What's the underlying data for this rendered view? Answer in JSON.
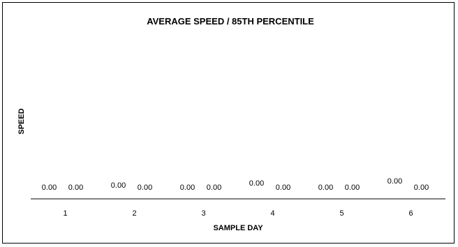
{
  "chart_data": {
    "type": "bar",
    "title": "AVERAGE SPEED / 85TH PERCENTILE",
    "xlabel": "SAMPLE DAY",
    "ylabel": "SPEED",
    "categories": [
      "1",
      "2",
      "3",
      "4",
      "5",
      "6"
    ],
    "series": [
      {
        "values": [
          0.0,
          0.0,
          0.0,
          0.0,
          0.0,
          0.0
        ]
      },
      {
        "values": [
          0.0,
          0.0,
          0.0,
          0.0,
          0.0,
          0.0
        ]
      }
    ],
    "data_labels": [
      [
        "0.00",
        "0.00"
      ],
      [
        "0.00",
        "0.00"
      ],
      [
        "0.00",
        "0.00"
      ],
      [
        "0.00",
        "0.00"
      ],
      [
        "0.00",
        "0.00"
      ],
      [
        "0.00",
        "0.00"
      ]
    ],
    "grid": false,
    "legend": "none",
    "colors": {
      "axis": "#000000",
      "text": "#000000",
      "background": "#ffffff"
    }
  }
}
